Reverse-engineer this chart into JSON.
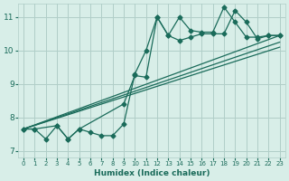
{
  "xlabel": "Humidex (Indice chaleur)",
  "ylabel": "",
  "bg_color": "#d8eee8",
  "grid_color": "#b0cec8",
  "line_color": "#1a6b5a",
  "xlim": [
    -0.5,
    23.5
  ],
  "ylim": [
    6.8,
    11.4
  ],
  "yticks": [
    7,
    8,
    9,
    10,
    11
  ],
  "xticks": [
    0,
    1,
    2,
    3,
    4,
    5,
    6,
    7,
    8,
    9,
    10,
    11,
    12,
    13,
    14,
    15,
    16,
    17,
    18,
    19,
    20,
    21,
    22,
    23
  ],
  "series1_x": [
    0,
    1,
    2,
    3,
    4,
    5,
    6,
    7,
    8,
    9,
    10,
    11,
    12,
    13,
    14,
    15,
    16,
    17,
    18,
    19,
    20,
    21,
    22,
    23
  ],
  "series1_y": [
    7.65,
    7.65,
    7.35,
    7.75,
    7.35,
    7.65,
    7.55,
    7.45,
    7.45,
    7.8,
    9.3,
    10.0,
    11.0,
    10.45,
    11.0,
    10.6,
    10.55,
    10.55,
    11.3,
    10.85,
    10.4,
    10.4,
    10.45,
    10.45
  ],
  "series2_x": [
    0,
    1,
    3,
    4,
    5,
    9,
    10,
    11,
    12,
    13,
    14,
    15,
    16,
    17,
    18,
    19,
    20,
    21,
    22,
    23
  ],
  "series2_y": [
    7.65,
    7.65,
    7.75,
    7.35,
    7.65,
    8.4,
    9.25,
    9.2,
    11.0,
    10.45,
    10.3,
    10.4,
    10.5,
    10.5,
    10.5,
    11.2,
    10.85,
    10.35,
    10.45,
    10.45
  ],
  "line1_x": [
    0,
    23
  ],
  "line1_y": [
    7.65,
    10.45
  ],
  "line2_x": [
    0,
    23
  ],
  "line2_y": [
    7.65,
    10.1
  ],
  "line3_x": [
    0,
    23
  ],
  "line3_y": [
    7.65,
    10.25
  ]
}
